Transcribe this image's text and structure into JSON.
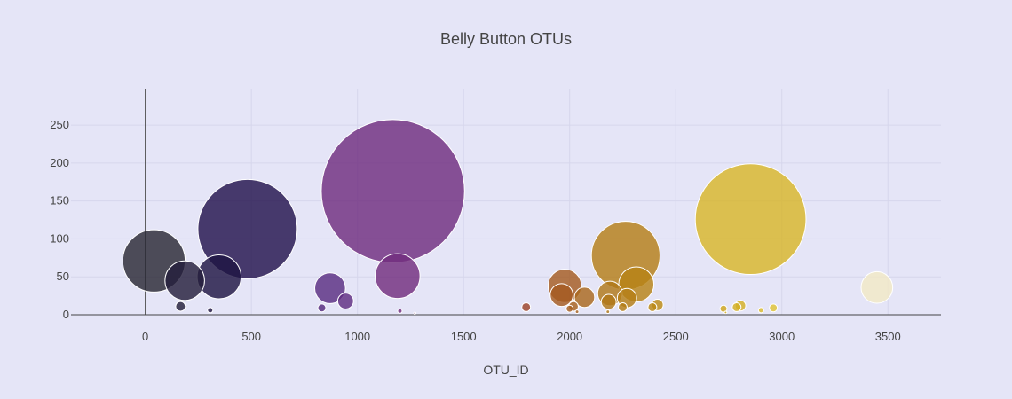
{
  "chart_data": {
    "type": "scatter",
    "title": "Belly Button OTUs",
    "xlabel": "OTU_ID",
    "ylabel": "",
    "xlim": [
      -350,
      3750
    ],
    "ylim": [
      0,
      298
    ],
    "x_ticks": [
      0,
      500,
      1000,
      1500,
      2000,
      2500,
      3000,
      3500
    ],
    "y_ticks": [
      0,
      50,
      100,
      150,
      200,
      250
    ],
    "grid": true,
    "legend": "none",
    "marker_size": "y value",
    "color_scale": [
      "#2b2b33",
      "#1c0f47",
      "#5a2d82",
      "#7a2d7d",
      "#9a3d2a",
      "#b07818",
      "#c89a10",
      "#e6d040",
      "#f2ecd8"
    ],
    "points": [
      {
        "x": 41,
        "y": 71
      },
      {
        "x": 186,
        "y": 45
      },
      {
        "x": 348,
        "y": 50
      },
      {
        "x": 482,
        "y": 113
      },
      {
        "x": 871,
        "y": 35
      },
      {
        "x": 944,
        "y": 18
      },
      {
        "x": 1167,
        "y": 163
      },
      {
        "x": 1189,
        "y": 51
      },
      {
        "x": 1795,
        "y": 10
      },
      {
        "x": 1977,
        "y": 38
      },
      {
        "x": 1962,
        "y": 26
      },
      {
        "x": 2070,
        "y": 23
      },
      {
        "x": 2190,
        "y": 28
      },
      {
        "x": 2264,
        "y": 78
      },
      {
        "x": 2314,
        "y": 40
      },
      {
        "x": 2270,
        "y": 22
      },
      {
        "x": 2184,
        "y": 17
      },
      {
        "x": 2018,
        "y": 11
      },
      {
        "x": 2414,
        "y": 13
      },
      {
        "x": 2390,
        "y": 10
      },
      {
        "x": 2853,
        "y": 126
      },
      {
        "x": 2805,
        "y": 12
      },
      {
        "x": 2787,
        "y": 10
      },
      {
        "x": 2960,
        "y": 9
      },
      {
        "x": 2725,
        "y": 8
      },
      {
        "x": 3448,
        "y": 36
      },
      {
        "x": 166,
        "y": 11
      },
      {
        "x": 306,
        "y": 6
      },
      {
        "x": 832,
        "y": 9
      },
      {
        "x": 1200,
        "y": 5
      },
      {
        "x": 2000,
        "y": 8
      },
      {
        "x": 2250,
        "y": 10
      },
      {
        "x": 2902,
        "y": 6
      },
      {
        "x": 2735,
        "y": 3
      },
      {
        "x": 1270,
        "y": 2
      },
      {
        "x": 2180,
        "y": 4
      },
      {
        "x": 2035,
        "y": 4
      }
    ]
  }
}
